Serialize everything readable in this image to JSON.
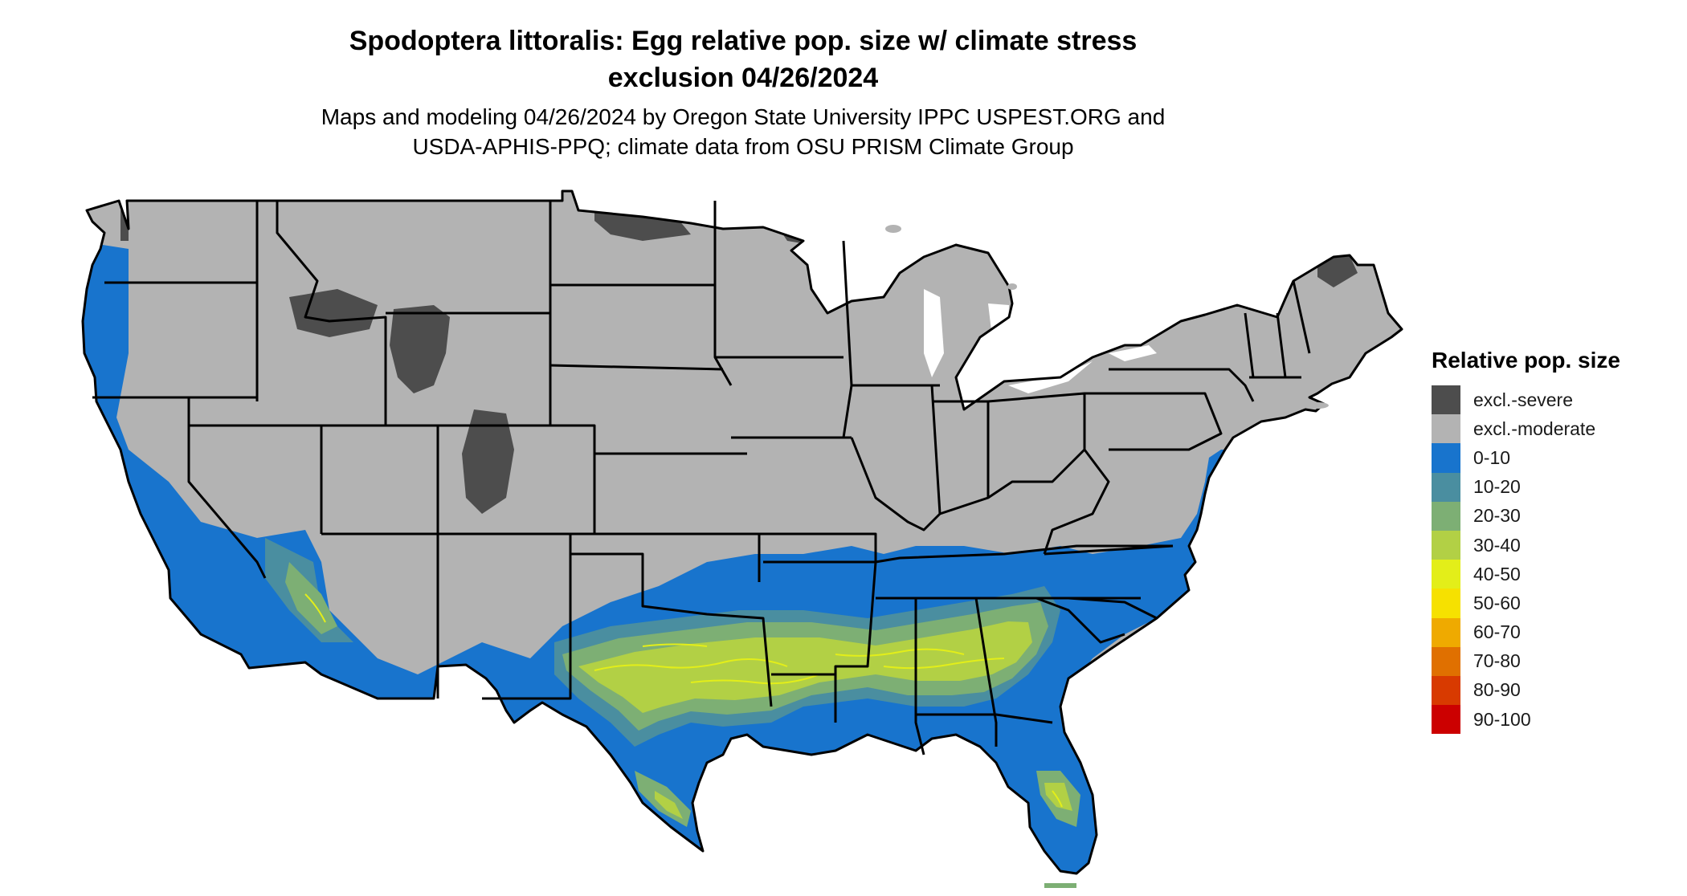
{
  "header": {
    "title_line1": "Spodoptera littoralis: Egg relative pop. size w/ climate stress",
    "title_line2": "exclusion 04/26/2024",
    "subtitle_line1": "Maps and modeling 04/26/2024 by Oregon State University IPPC USPEST.ORG and",
    "subtitle_line2": "USDA-APHIS-PPQ; climate data from OSU PRISM Climate Group"
  },
  "legend": {
    "title": "Relative pop. size",
    "items": [
      {
        "label": "excl.-severe",
        "color": "#4d4d4d"
      },
      {
        "label": "excl.-moderate",
        "color": "#b3b3b3"
      },
      {
        "label": "0-10",
        "color": "#1874cd"
      },
      {
        "label": "10-20",
        "color": "#4a8ea0"
      },
      {
        "label": "20-30",
        "color": "#7daf74"
      },
      {
        "label": "30-40",
        "color": "#b2d045"
      },
      {
        "label": "40-50",
        "color": "#e3ee19"
      },
      {
        "label": "50-60",
        "color": "#f6e100"
      },
      {
        "label": "60-70",
        "color": "#efaa00"
      },
      {
        "label": "70-80",
        "color": "#e07000"
      },
      {
        "label": "80-90",
        "color": "#d83a00"
      },
      {
        "label": "90-100",
        "color": "#cc0000"
      }
    ]
  },
  "map": {
    "region": "Contiguous United States",
    "borders_color": "#000000"
  }
}
